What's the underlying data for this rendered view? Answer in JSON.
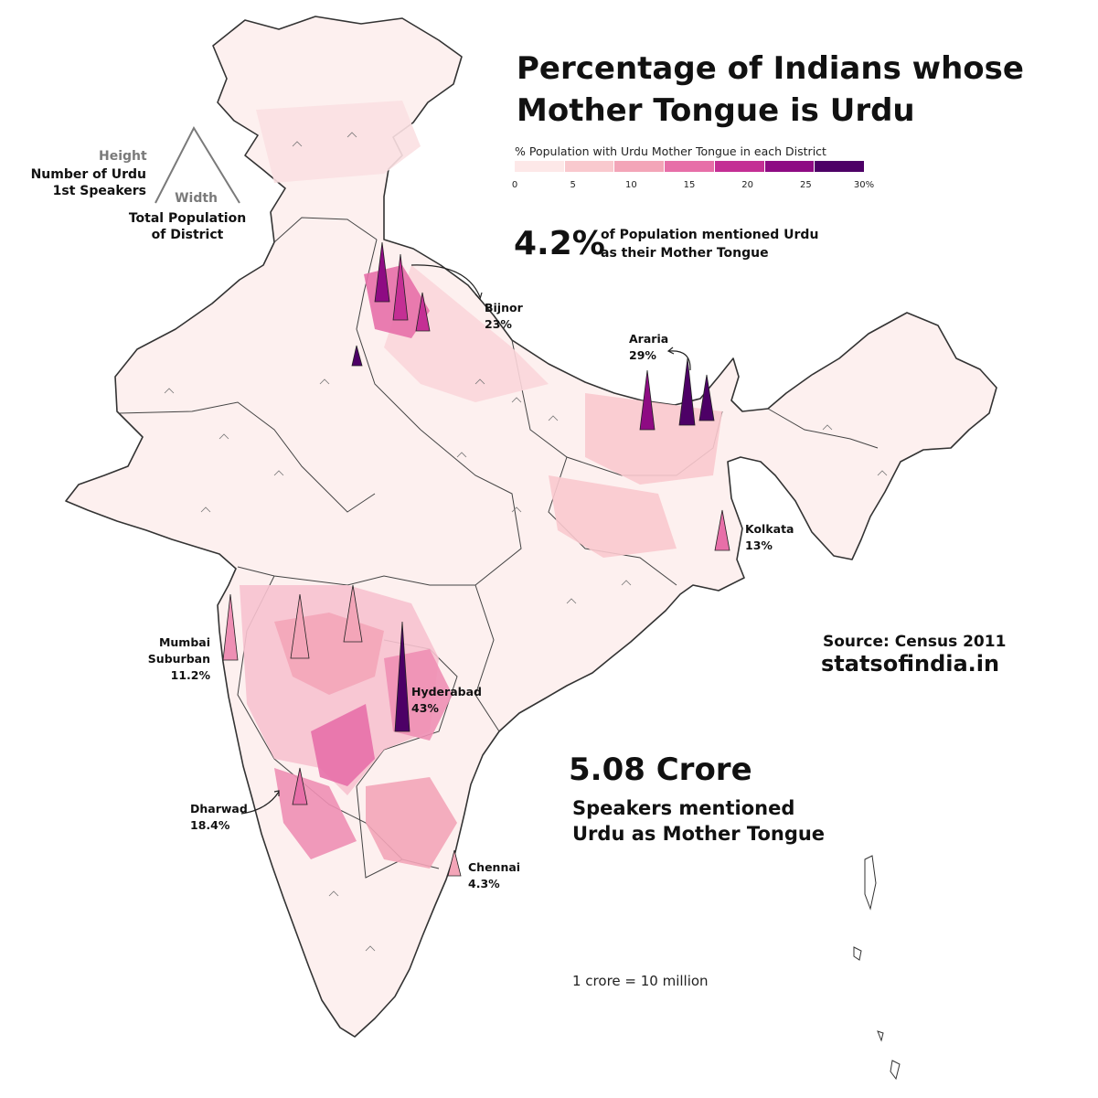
{
  "title_line1": "Percentage of Indians whose",
  "title_line2": "Mother Tongue is Urdu",
  "legend": {
    "title": "% Population with Urdu Mother Tongue in each District",
    "ticks": [
      "0",
      "5",
      "10",
      "15",
      "20",
      "25",
      "30%"
    ],
    "colors": [
      "#fde8e8",
      "#f9c9ce",
      "#f3a5b8",
      "#e76fa8",
      "#c42f94",
      "#8e0b83",
      "#4d0066"
    ]
  },
  "stat": {
    "value": "4.2%",
    "line1": "of Population mentioned Urdu",
    "line2": "as their Mother Tongue"
  },
  "key": {
    "height_label": "Height",
    "height_line1": "Number of Urdu",
    "height_line2": "1st Speakers",
    "width_label": "Width",
    "width_line1": "Total Population",
    "width_line2": "of District"
  },
  "cities": {
    "bijnor": {
      "name": "Bijnor",
      "pct": "23%"
    },
    "araria": {
      "name": "Araria",
      "pct": "29%"
    },
    "kolkata": {
      "name": "Kolkata",
      "pct": "13%"
    },
    "mumbai": {
      "name1": "Mumbai",
      "name2": "Suburban",
      "pct": "11.2%"
    },
    "hyderabad": {
      "name": "Hyderabad",
      "pct": "43%"
    },
    "dharwad": {
      "name": "Dharwad",
      "pct": "18.4%"
    },
    "chennai": {
      "name": "Chennai",
      "pct": "4.3%"
    }
  },
  "source": "Source: Census 2011",
  "site": "statsofindia.in",
  "total": {
    "value": "5.08 Crore",
    "line1": "Speakers mentioned",
    "line2": "Urdu as Mother Tongue"
  },
  "note": "1 crore = 10 million"
}
